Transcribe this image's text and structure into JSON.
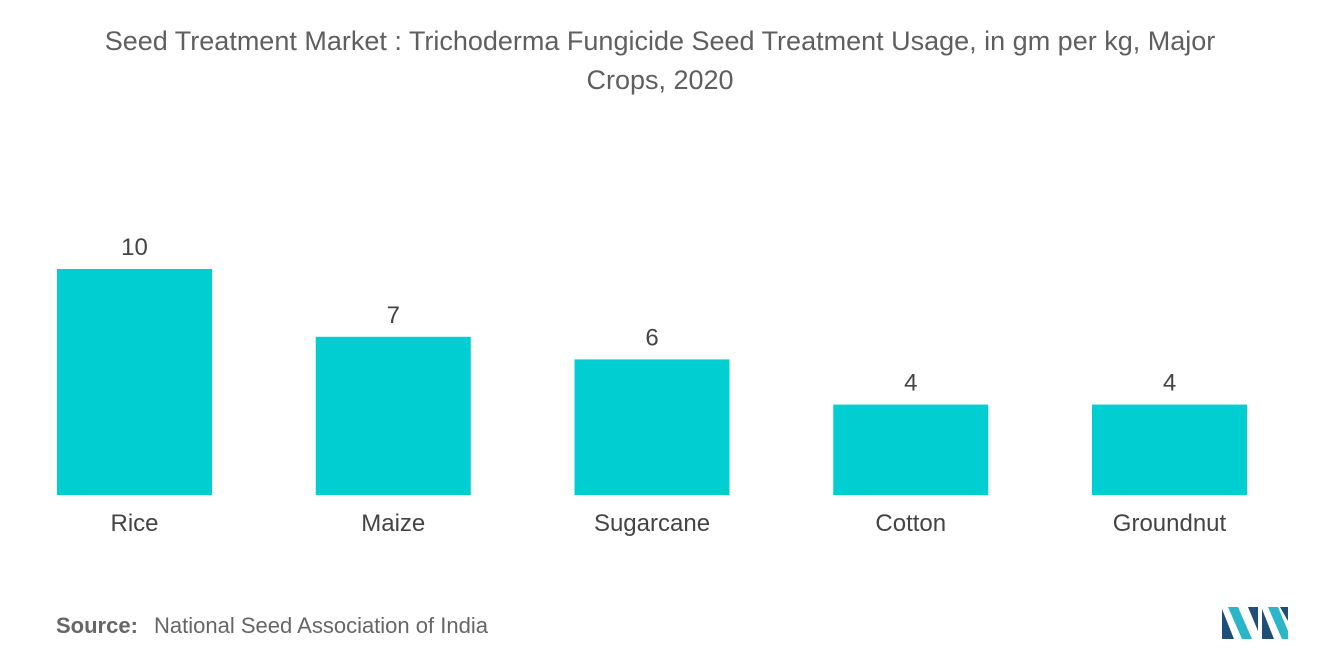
{
  "title_line1": "Seed Treatment Market : Trichoderma Fungicide Seed Treatment Usage, in gm per kg, Major",
  "title_line2": "Crops, 2020",
  "source_label": "Source:",
  "source_text": "National Seed Association of India",
  "colors": {
    "bar": "#00CED1",
    "text": "#555555",
    "logo_dark": "#1f4e79",
    "logo_light": "#2bb5c8"
  },
  "icons": [
    "mordor-intelligence-logo"
  ],
  "chart_data": {
    "type": "bar",
    "categories": [
      "Rice",
      "Maize",
      "Sugarcane",
      "Cotton",
      "Groundnut"
    ],
    "values": [
      10,
      7,
      6,
      4,
      4
    ],
    "data_labels": [
      "10",
      "7",
      "6",
      "4",
      "4"
    ],
    "ylim": [
      0,
      10
    ],
    "grid": false,
    "legend": "none"
  }
}
